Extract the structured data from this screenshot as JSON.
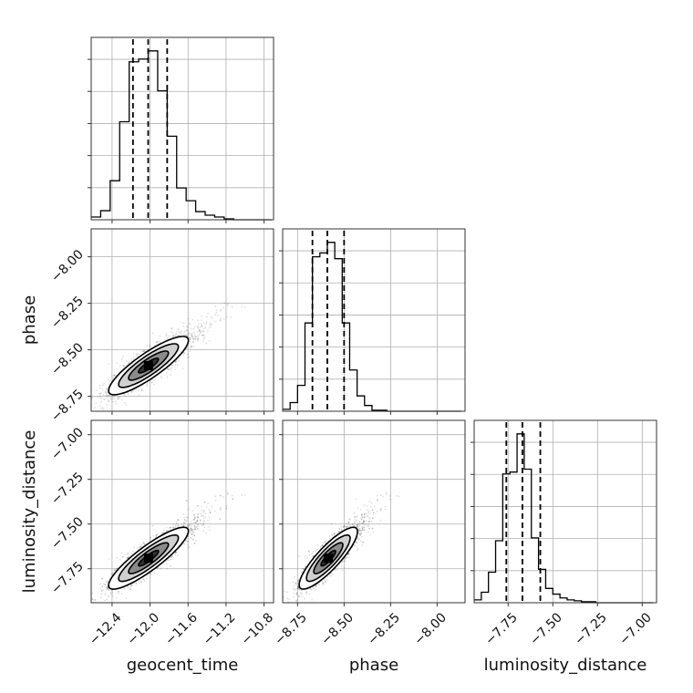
{
  "chart_data": {
    "type": "corner",
    "parameters": [
      {
        "name": "geocent_time",
        "label": "geocent_time",
        "range": [
          -12.62,
          -10.7
        ],
        "ticks": [
          -12.4,
          -12.0,
          -11.6,
          -11.2,
          -10.8
        ],
        "tick_labels": [
          "−12.4",
          "−12.0",
          "−11.6",
          "−11.2",
          "−10.8"
        ],
        "quantiles": [
          -12.18,
          -12.02,
          -11.82
        ],
        "hist": {
          "edges": [
            -12.62,
            -12.52,
            -12.42,
            -12.32,
            -12.22,
            -12.12,
            -12.02,
            -11.92,
            -11.82,
            -11.72,
            -11.62,
            -11.52,
            -11.42,
            -11.32,
            -11.22,
            -11.12,
            -11.02,
            -10.92,
            -10.82,
            -10.72
          ],
          "counts": [
            3,
            10,
            43,
            108,
            174,
            177,
            186,
            142,
            92,
            35,
            21,
            9,
            5,
            3,
            1,
            0,
            0,
            0,
            0
          ]
        }
      },
      {
        "name": "phase",
        "label": "phase",
        "range": [
          -8.83,
          -7.85
        ],
        "ticks": [
          -8.75,
          -8.5,
          -8.25,
          -8.0
        ],
        "tick_labels": [
          "−8.75",
          "−8.50",
          "−8.25",
          "−8.00"
        ],
        "quantiles": [
          -8.67,
          -8.59,
          -8.5
        ],
        "hist": {
          "edges": [
            -8.83,
            -8.79,
            -8.75,
            -8.71,
            -8.67,
            -8.63,
            -8.59,
            -8.55,
            -8.51,
            -8.47,
            -8.43,
            -8.39,
            -8.35,
            -8.31,
            -8.27,
            -8.23,
            -8.19,
            -8.15,
            -8.11,
            -8.07,
            -8.03,
            -7.99,
            -7.95,
            -7.91,
            -7.87
          ],
          "counts": [
            2,
            9,
            27,
            92,
            161,
            165,
            176,
            159,
            92,
            43,
            16,
            6,
            1,
            1,
            0,
            0,
            0,
            0,
            0,
            0,
            0,
            0,
            0,
            0
          ]
        }
      },
      {
        "name": "luminosity_distance",
        "label": "luminosity_distance",
        "range": [
          -7.94,
          -6.92
        ],
        "ticks": [
          -7.75,
          -7.5,
          -7.25,
          -7.0
        ],
        "tick_labels": [
          "−7.75",
          "−7.50",
          "−7.25",
          "−7.00"
        ],
        "quantiles": [
          -7.76,
          -7.67,
          -7.57
        ],
        "hist": {
          "edges": [
            -7.94,
            -7.9,
            -7.86,
            -7.82,
            -7.78,
            -7.74,
            -7.7,
            -7.66,
            -7.62,
            -7.58,
            -7.54,
            -7.5,
            -7.46,
            -7.42,
            -7.38,
            -7.34,
            -7.3,
            -7.26,
            -7.22,
            -7.18,
            -7.14,
            -7.1,
            -7.06,
            -7.02,
            -6.98,
            -6.94
          ],
          "counts": [
            3,
            11,
            32,
            65,
            135,
            137,
            177,
            140,
            68,
            35,
            15,
            9,
            5,
            3,
            2,
            1,
            1,
            0,
            0,
            0,
            0,
            0,
            0,
            0,
            0
          ]
        }
      }
    ],
    "y_ticks_2d": {
      "phase": {
        "ticks": [
          -8.75,
          -8.5,
          -8.25,
          -8.0
        ],
        "tick_labels": [
          "−8.75",
          "−8.50",
          "−8.25",
          "−8.00"
        ]
      },
      "luminosity_distance": {
        "ticks": [
          -7.75,
          -7.5,
          -7.25,
          -7.0
        ],
        "tick_labels": [
          "−7.75",
          "−7.50",
          "−7.25",
          "−7.00"
        ]
      }
    },
    "correlations": {
      "phase|geocent_time": 0.86,
      "luminosity_distance|geocent_time": 0.88,
      "luminosity_distance|phase": 0.86
    },
    "contour_levels": [
      0.118,
      0.393,
      0.675,
      0.865
    ],
    "grid": true
  }
}
